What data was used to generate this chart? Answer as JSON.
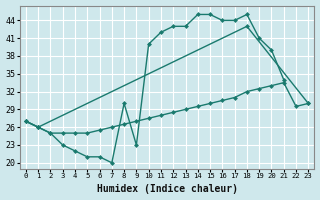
{
  "xlabel": "Humidex (Indice chaleur)",
  "bg_color": "#cfe8ec",
  "grid_color": "#ffffff",
  "line_color": "#1a7a6e",
  "xlim": [
    -0.5,
    23.5
  ],
  "ylim": [
    19,
    46.5
  ],
  "xticks": [
    0,
    1,
    2,
    3,
    4,
    5,
    6,
    7,
    8,
    9,
    10,
    11,
    12,
    13,
    14,
    15,
    16,
    17,
    18,
    19,
    20,
    21,
    22,
    23
  ],
  "yticks": [
    20,
    23,
    26,
    29,
    32,
    35,
    38,
    41,
    44
  ],
  "line1_x": [
    0,
    1,
    2,
    3,
    4,
    5,
    6,
    7,
    8,
    9,
    10,
    11,
    12,
    13,
    14,
    15,
    16,
    17,
    18,
    19,
    20,
    21
  ],
  "line1_y": [
    27,
    26,
    25,
    23,
    22,
    21,
    21,
    20,
    30,
    23,
    40,
    42,
    43,
    43,
    45,
    45,
    44,
    44,
    45,
    41,
    39,
    34
  ],
  "line2_x": [
    0,
    1,
    18,
    23
  ],
  "line2_y": [
    27,
    26,
    43,
    30
  ],
  "line3_x": [
    0,
    1,
    2,
    3,
    4,
    5,
    6,
    7,
    8,
    9,
    10,
    11,
    12,
    13,
    14,
    15,
    16,
    17,
    18,
    19,
    20,
    21,
    22,
    23
  ],
  "line3_y": [
    27,
    26,
    25,
    25,
    25,
    25,
    25.5,
    26,
    26.5,
    27,
    27.5,
    28,
    28.5,
    29,
    29.5,
    30,
    30.5,
    31,
    32,
    32.5,
    33,
    33.5,
    29.5,
    30
  ],
  "marker_size": 2.5,
  "linewidth": 1.0
}
